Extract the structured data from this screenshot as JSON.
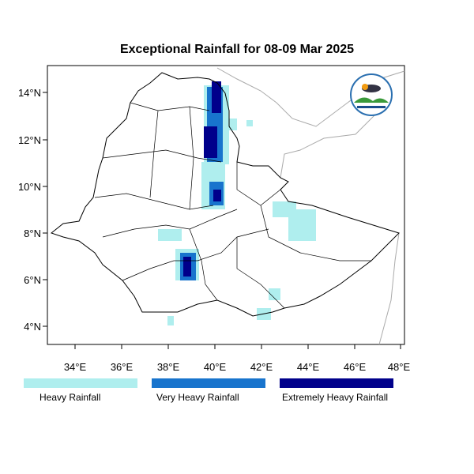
{
  "title": "Exceptional Rainfall for 08-09 Mar 2025",
  "axes": {
    "lon_ticks": [
      "34°E",
      "36°E",
      "38°E",
      "40°E",
      "42°E",
      "44°E",
      "46°E",
      "48°E"
    ],
    "lat_ticks": [
      "14°N",
      "12°N",
      "10°N",
      "8°N",
      "6°N",
      "4°N"
    ]
  },
  "legend": [
    {
      "label": "Heavy Rainfall",
      "color": "#afeeee"
    },
    {
      "label": "Very Heavy Rainfall",
      "color": "#1874cd"
    },
    {
      "label": "Extremely Heavy Rainfall",
      "color": "#00008b"
    }
  ],
  "logo": {
    "name": "Ethiopian Meteorology Institute"
  }
}
